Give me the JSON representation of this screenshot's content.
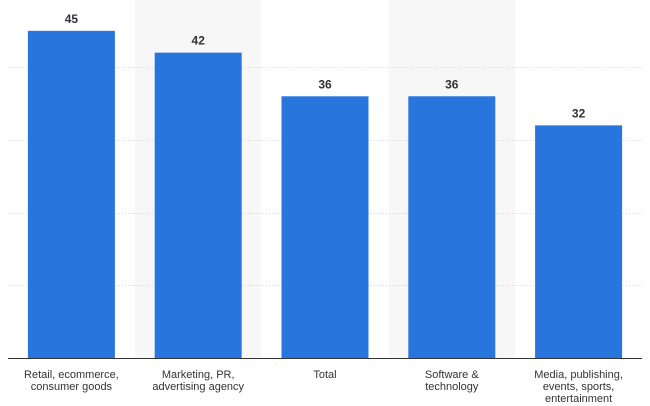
{
  "chart_data": {
    "type": "bar",
    "categories": [
      "Retail, ecommerce, consumer goods",
      "Marketing, PR, advertising agency",
      "Total",
      "Software & technology",
      "Media, publishing, events, sports, entertainment"
    ],
    "category_label_lines": [
      [
        "Retail, ecommerce,",
        "consumer goods"
      ],
      [
        "Marketing, PR,",
        "advertising agency"
      ],
      [
        "Total"
      ],
      [
        "Software &",
        "technology"
      ],
      [
        "Media, publishing,",
        "events, sports,",
        "entertainment"
      ]
    ],
    "values": [
      45,
      42,
      36,
      36,
      32
    ],
    "data_labels": [
      "45",
      "42",
      "36",
      "36",
      "32"
    ],
    "ylim": [
      0,
      50
    ],
    "y_gridlines": [
      10,
      20,
      30,
      40
    ],
    "y_tick_labels_visible": false,
    "grid": true,
    "alternating_column_shading": true,
    "title": "",
    "xlabel": "",
    "ylabel": "",
    "colors": {
      "bar": "#2876dd",
      "grid": "#d5d5d5",
      "axis": "#333333",
      "column_shade": "#f7f7f7"
    }
  }
}
